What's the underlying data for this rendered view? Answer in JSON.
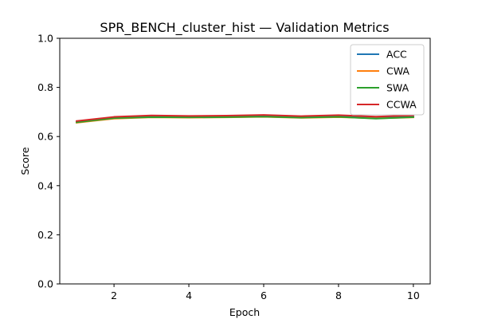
{
  "chart_data": {
    "type": "line",
    "title": "SPR_BENCH_cluster_hist — Validation Metrics",
    "xlabel": "Epoch",
    "ylabel": "Score",
    "xlim": [
      0.55,
      10.45
    ],
    "ylim": [
      0.0,
      1.0
    ],
    "xticks": [
      2,
      4,
      6,
      8,
      10
    ],
    "yticks": [
      0.0,
      0.2,
      0.4,
      0.6,
      0.8,
      1.0
    ],
    "grid": false,
    "legend_position": "top-right",
    "x": [
      1,
      2,
      3,
      4,
      5,
      6,
      7,
      8,
      9,
      10
    ],
    "series": [
      {
        "name": "ACC",
        "color": "#1f77b4",
        "values": [
          0.66,
          0.677,
          0.682,
          0.68,
          0.681,
          0.684,
          0.679,
          0.683,
          0.677,
          0.682
        ]
      },
      {
        "name": "CWA",
        "color": "#ff7f0e",
        "values": [
          0.656,
          0.673,
          0.678,
          0.677,
          0.678,
          0.68,
          0.676,
          0.679,
          0.674,
          0.678
        ]
      },
      {
        "name": "SWA",
        "color": "#2ca02c",
        "values": [
          0.658,
          0.675,
          0.679,
          0.678,
          0.679,
          0.681,
          0.677,
          0.68,
          0.673,
          0.679
        ]
      },
      {
        "name": "CCWA",
        "color": "#d62728",
        "values": [
          0.663,
          0.68,
          0.686,
          0.684,
          0.685,
          0.688,
          0.683,
          0.687,
          0.681,
          0.686
        ]
      }
    ]
  }
}
